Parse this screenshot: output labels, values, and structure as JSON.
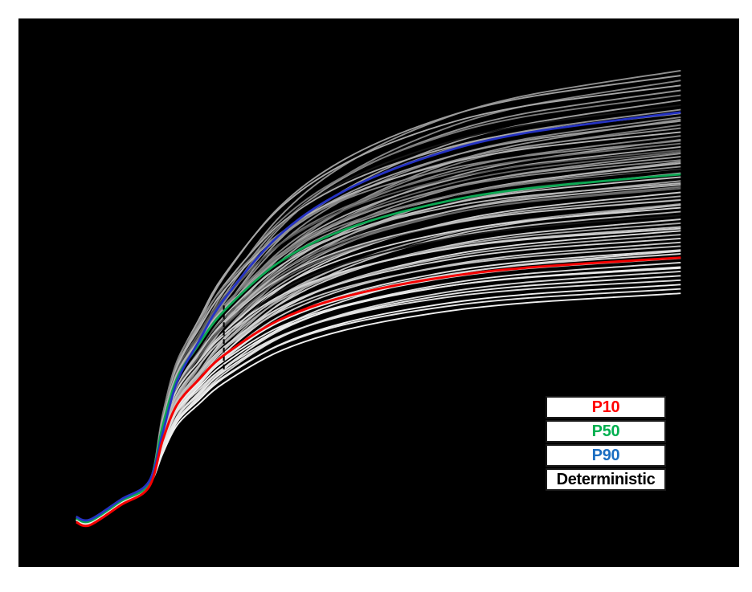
{
  "chart_data": {
    "type": "line",
    "title": "",
    "axes_visible": false,
    "grid": false,
    "plot_background": "#000000",
    "page_background": "#ffffff",
    "note": "Ensemble of stochastic cumulative-forecast realizations (gray) with percentile curves highlighted; no axis ticks or labels are shown in the image.",
    "x_domain_normalized": [
      0,
      1
    ],
    "y_domain_normalized": [
      0,
      1
    ],
    "history_x": [
      0.08,
      0.099,
      0.142,
      0.181
    ],
    "history_y": [
      0.088,
      0.0825,
      0.119,
      0.152
    ],
    "ramp_x": [
      0.181,
      0.2,
      0.22,
      0.25,
      0.285,
      0.36,
      0.45,
      0.57,
      0.7,
      0.919
    ],
    "rise_fraction": [
      0,
      0.17,
      0.32,
      0.43,
      0.54,
      0.7,
      0.81,
      0.895,
      0.95,
      1.0
    ],
    "curve_end_x": 0.919,
    "kink_y": 0.152,
    "gray_palette": [
      "#efefef",
      "#e7e7e7",
      "#dedede",
      "#d5d5d5",
      "#cbcbcb",
      "#c1c1c1",
      "#b5b5b5",
      "#a9a9a9",
      "#9d9d9d",
      "#919191",
      "#858585",
      "#7a7a7a",
      "#6f6f6f",
      "#646464",
      "#565656",
      "#161616"
    ],
    "realizations_format": "[plateau_level_normalized, shape_exponent, gray_palette_index]",
    "realizations": [
      [
        0.905,
        1.25,
        9
      ],
      [
        0.896,
        1.1,
        8
      ],
      [
        0.887,
        1.3,
        10
      ],
      [
        0.878,
        1.05,
        7
      ],
      [
        0.869,
        1.2,
        9
      ],
      [
        0.86,
        1.12,
        11
      ],
      [
        0.851,
        1.28,
        8
      ],
      [
        0.842,
        1.08,
        15
      ],
      [
        0.834,
        1.18,
        9
      ],
      [
        0.827,
        1.02,
        7
      ],
      [
        0.82,
        1.22,
        10
      ],
      [
        0.816,
        1.35,
        9
      ],
      [
        0.813,
        1.1,
        8
      ],
      [
        0.806,
        1.3,
        11
      ],
      [
        0.8,
        1.05,
        9
      ],
      [
        0.793,
        0.98,
        6
      ],
      [
        0.786,
        1.15,
        10
      ],
      [
        0.779,
        1.25,
        8
      ],
      [
        0.777,
        0.9,
        10
      ],
      [
        0.772,
        1.0,
        12
      ],
      [
        0.766,
        1.1,
        7
      ],
      [
        0.76,
        0.95,
        14
      ],
      [
        0.757,
        1.08,
        13
      ],
      [
        0.754,
        1.2,
        9
      ],
      [
        0.748,
        1.05,
        8
      ],
      [
        0.742,
        0.98,
        10
      ],
      [
        0.739,
        1.28,
        8
      ],
      [
        0.736,
        1.15,
        6
      ],
      [
        0.73,
        1.02,
        9
      ],
      [
        0.725,
        1.22,
        15
      ],
      [
        0.724,
        0.92,
        11
      ],
      [
        0.718,
        1.1,
        7
      ],
      [
        0.711,
        0.98,
        5
      ],
      [
        0.704,
        1.12,
        8
      ],
      [
        0.7,
        0.88,
        6
      ],
      [
        0.697,
        1.0,
        6
      ],
      [
        0.693,
        1.02,
        12
      ],
      [
        0.69,
        0.94,
        13
      ],
      [
        0.683,
        1.15,
        4
      ],
      [
        0.676,
        1.05,
        7
      ],
      [
        0.67,
        0.97,
        14
      ],
      [
        0.669,
        0.92,
        5
      ],
      [
        0.662,
        1.18,
        8
      ],
      [
        0.66,
        1.25,
        5
      ],
      [
        0.655,
        0.98,
        3
      ],
      [
        0.648,
        1.06,
        6
      ],
      [
        0.641,
        0.95,
        15
      ],
      [
        0.634,
        1.1,
        4
      ],
      [
        0.627,
        1.0,
        7
      ],
      [
        0.62,
        0.92,
        5
      ],
      [
        0.617,
        0.87,
        3
      ],
      [
        0.613,
        1.08,
        2
      ],
      [
        0.606,
        1.0,
        6
      ],
      [
        0.599,
        0.95,
        3
      ],
      [
        0.592,
        1.05,
        4
      ],
      [
        0.585,
        0.92,
        5
      ],
      [
        0.578,
        1.02,
        2
      ],
      [
        0.576,
        1.15,
        2
      ],
      [
        0.571,
        0.98,
        3
      ],
      [
        0.563,
        0.94,
        1
      ],
      [
        0.555,
        1.04,
        2
      ],
      [
        0.547,
        0.97,
        0
      ],
      [
        0.545,
        0.9,
        1
      ],
      [
        0.539,
        1.06,
        3
      ],
      [
        0.531,
        0.99,
        1
      ],
      [
        0.523,
        0.92,
        2
      ],
      [
        0.515,
        1.02,
        0
      ],
      [
        0.507,
        0.97,
        1
      ],
      [
        0.499,
        1.03,
        0
      ]
    ],
    "highlighted_series": [
      {
        "name": "Deterministic",
        "color": "#000000",
        "plateau": 0.723,
        "shape": 1.0,
        "width": 2.6,
        "history_offset": 0.002
      },
      {
        "name": "P50",
        "color": "#0ca853",
        "plateau": 0.716,
        "shape": 0.95,
        "width": 2.8,
        "history_offset": 0.001
      },
      {
        "name": "P90",
        "color": "#2533c4",
        "plateau": 0.829,
        "shape": 1.15,
        "width": 2.8,
        "history_offset": 0.004
      },
      {
        "name": "P10",
        "color": "#f50000",
        "plateau": 0.564,
        "shape": 0.9,
        "width": 3.0,
        "history_offset": -0.006
      }
    ],
    "marker_line": {
      "x": 0.285,
      "y_top": 0.477,
      "y_bottom": 0.36,
      "color": "#000000",
      "style": "dashed",
      "width": 2.2
    }
  },
  "legend": {
    "items": [
      {
        "label": "P10",
        "color": "#ff0000"
      },
      {
        "label": "P50",
        "color": "#00b050"
      },
      {
        "label": "P90",
        "color": "#1b6ec2"
      },
      {
        "label": "Deterministic",
        "color": "#000000"
      }
    ]
  }
}
